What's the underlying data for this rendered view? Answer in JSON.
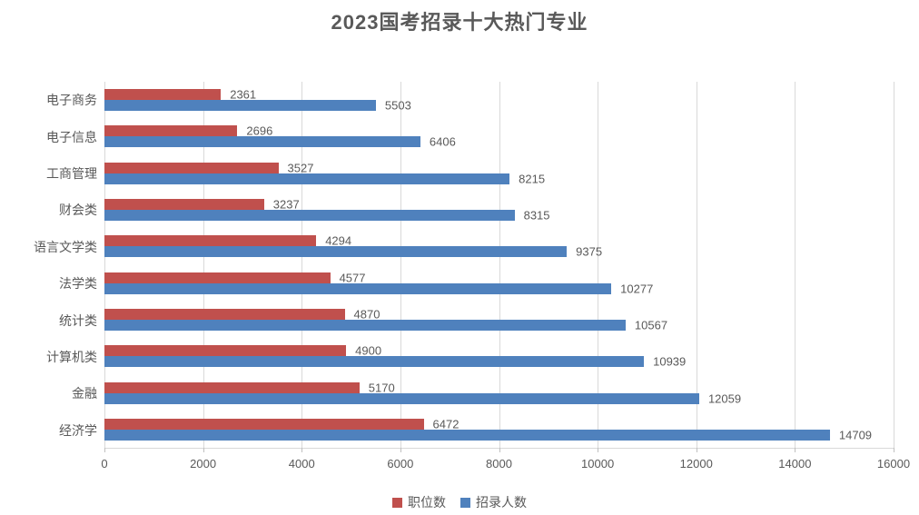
{
  "chart_data": {
    "type": "bar",
    "orientation": "horizontal",
    "title": "2023国考招录十大热门专业",
    "categories": [
      "电子商务",
      "电子信息",
      "工商管理",
      "财会类",
      "语言文学类",
      "法学类",
      "统计类",
      "计算机类",
      "金融",
      "经济学"
    ],
    "series": [
      {
        "name": "职位数",
        "color": "#c0504d",
        "values": [
          2361,
          2696,
          3527,
          3237,
          4294,
          4577,
          4870,
          4900,
          5170,
          6472
        ]
      },
      {
        "name": "招录人数",
        "color": "#4f81bd",
        "values": [
          5503,
          6406,
          8215,
          8315,
          9375,
          10277,
          10567,
          10939,
          12059,
          14709
        ]
      }
    ],
    "xlim": [
      0,
      16000
    ],
    "x_ticks": [
      0,
      2000,
      4000,
      6000,
      8000,
      10000,
      12000,
      14000,
      16000
    ],
    "grid": "vertical-only",
    "gridline_color": "#d9d9d9",
    "legend_position": "bottom-center",
    "data_labels": true,
    "label_color": "#595959",
    "title_color": "#595959",
    "background": "#ffffff"
  }
}
